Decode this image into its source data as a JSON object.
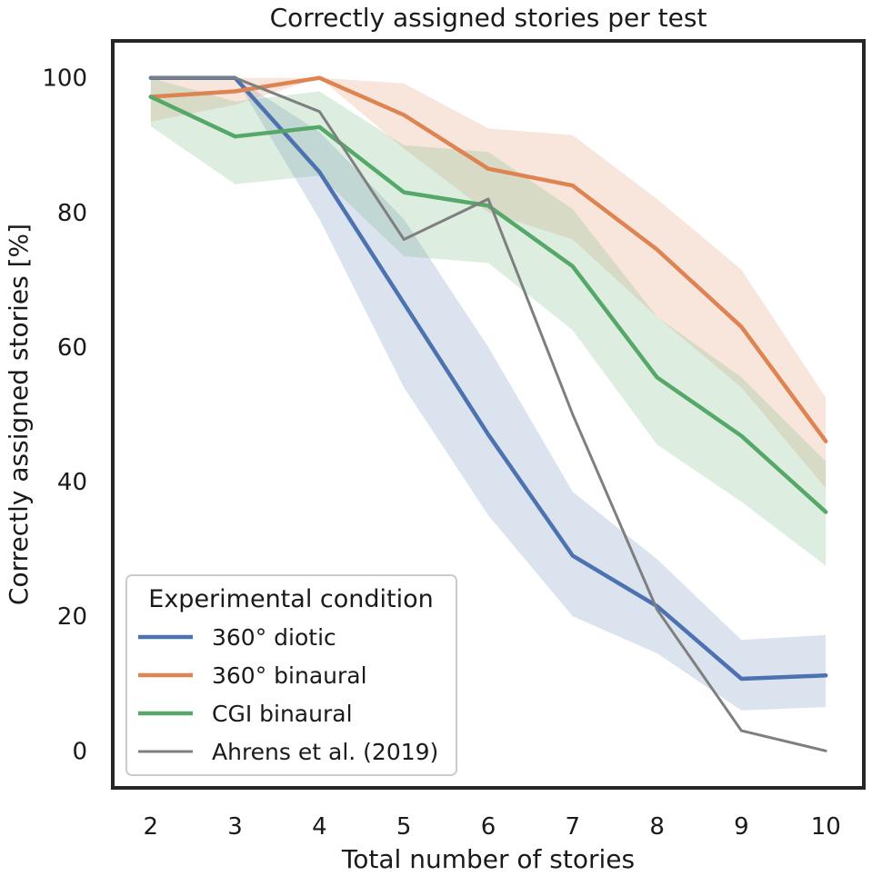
{
  "chart_data": {
    "type": "line",
    "title": "Correctly assigned stories per test",
    "xlabel": "Total number of stories",
    "ylabel": "Correctly assigned stories [%]",
    "x": [
      2,
      3,
      4,
      5,
      6,
      7,
      8,
      9,
      10
    ],
    "xticks": [
      "2",
      "3",
      "4",
      "5",
      "6",
      "7",
      "8",
      "9",
      "10"
    ],
    "yticks": [
      "0",
      "20",
      "40",
      "60",
      "80",
      "100"
    ],
    "ytick_values": [
      0,
      20,
      40,
      60,
      80,
      100
    ],
    "xlim": [
      1.55,
      10.45
    ],
    "ylim": [
      -5.5,
      105.5
    ],
    "grid": false,
    "legend": {
      "title": "Experimental condition",
      "placement": "lower-left"
    },
    "series": [
      {
        "name": "360° diotic",
        "color": "#4c72b0",
        "values": [
          100,
          100,
          86,
          66.5,
          47,
          29,
          21.5,
          10.7,
          11.2
        ],
        "ci_low": [
          100,
          100,
          79,
          54,
          35,
          20,
          14.5,
          6,
          6.5
        ],
        "ci_high": [
          100,
          100,
          92,
          79,
          60,
          38.5,
          28.5,
          16.5,
          17.2
        ]
      },
      {
        "name": "360° binaural",
        "color": "#dd8452",
        "values": [
          97.2,
          98,
          100,
          94.5,
          86.5,
          84,
          74.5,
          63,
          46
        ],
        "ci_low": [
          93.5,
          96,
          100,
          89.5,
          80,
          76,
          64.5,
          54,
          39
        ],
        "ci_high": [
          100,
          100,
          100,
          99.2,
          92.5,
          91.5,
          82,
          71.5,
          52.5
        ]
      },
      {
        "name": "CGI binaural",
        "color": "#55a868",
        "values": [
          97.2,
          91.3,
          92.7,
          83,
          81,
          72,
          55.5,
          46.8,
          35.5
        ],
        "ci_low": [
          92.8,
          84.2,
          85.5,
          73.5,
          72.5,
          62.5,
          45.5,
          37,
          27.5
        ],
        "ci_high": [
          100,
          96.5,
          98,
          90,
          89,
          80.5,
          64.5,
          55.5,
          43
        ]
      },
      {
        "name": "Ahrens et al. (2019)",
        "color": "#7f7f7f",
        "values": [
          100,
          100,
          95,
          76,
          82,
          50,
          21,
          3,
          0
        ]
      }
    ]
  }
}
